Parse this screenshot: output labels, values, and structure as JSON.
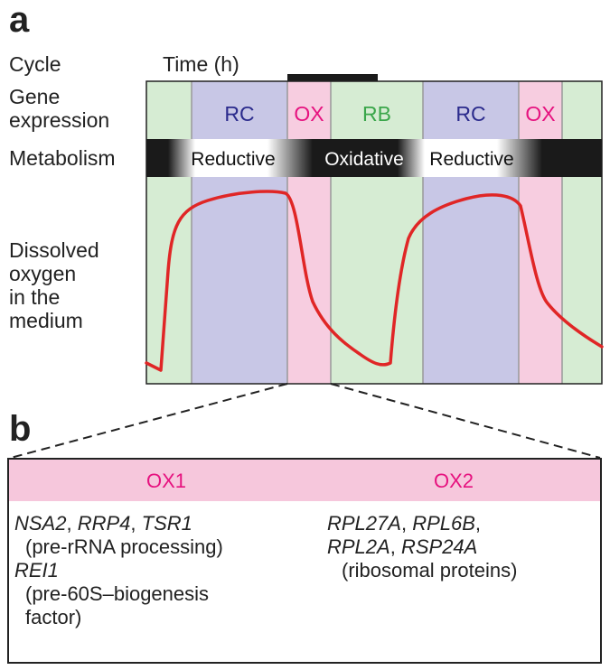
{
  "panel_a": {
    "letter": "a",
    "labels": {
      "cycle": "Cycle",
      "time": "Time (h)",
      "gene_expression": [
        "Gene",
        "expression"
      ],
      "metabolism": "Metabolism",
      "dissolved_oxygen": [
        "Dissolved",
        "oxygen",
        "in the",
        "medium"
      ]
    },
    "phases": [
      "RC",
      "OX",
      "RB",
      "RC",
      "OX"
    ],
    "metabolism_states": [
      "Reductive",
      "Oxidative",
      "Reductive"
    ],
    "colors": {
      "RC": "#c8c7e6",
      "OX": "#f7cde0",
      "RB": "#d6ecd3",
      "RC_text": "#2a2a8c",
      "OX_text": "#e6127f",
      "RB_text": "#3aa64a",
      "curve": "#e02626",
      "metabolism_bar": "#1a1a1a"
    }
  },
  "panel_b": {
    "letter": "b",
    "headers": [
      "OX1",
      "OX2"
    ],
    "ox1": [
      {
        "genes": [
          "NSA2",
          "RRP4",
          "TSR1"
        ],
        "note": "(pre-rRNA processing)"
      },
      {
        "genes": [
          "REI1"
        ],
        "note": [
          "(pre-60S–biogenesis",
          "factor)"
        ]
      }
    ],
    "ox2": [
      {
        "genes_line1": [
          "RPL27A",
          "RPL6B"
        ],
        "genes_line2": [
          "RPL2A",
          "RSP24A"
        ],
        "note": "(ribosomal proteins)"
      }
    ]
  }
}
